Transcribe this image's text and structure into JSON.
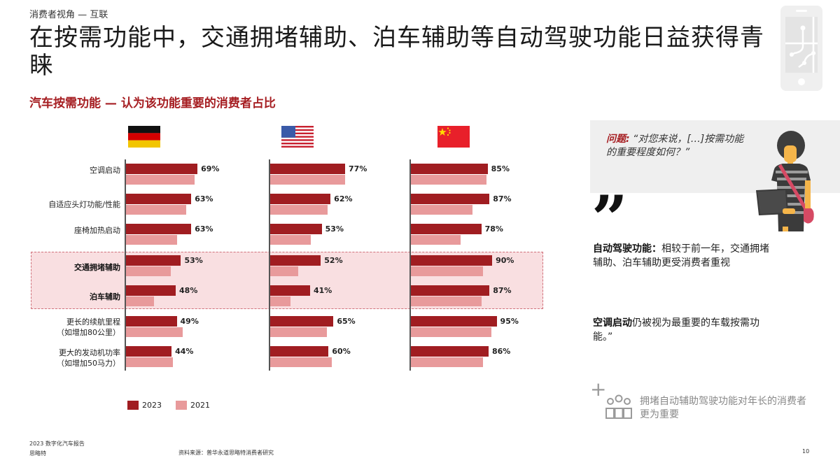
{
  "header": {
    "kicker": "消费者视角 — 互联",
    "title": "在按需功能中，交通拥堵辅助、泊车辅助等自动驾驶功能日益获得青睐",
    "subtitle": "汽车按需功能 — 认为该功能重要的消费者占比",
    "corner_icon": "phone-circuit-icon"
  },
  "colors": {
    "accent": "#a61e22",
    "bar_2023": "#a01d21",
    "bar_2021": "#e89a9b",
    "highlight": "#f9dfe1"
  },
  "chart_data": {
    "type": "bar",
    "orientation": "horizontal",
    "title": "汽车按需功能 — 认为该功能重要的消费者占比",
    "categories": [
      "空调启动",
      "自适应头灯功能/性能",
      "座椅加热启动",
      "交通拥堵辅助",
      "泊车辅助",
      "更长的续航里程（如增加80公里）",
      "更大的发动机功率（如增加50马力）"
    ],
    "highlighted_categories": [
      "交通拥堵辅助",
      "泊车辅助"
    ],
    "legend": [
      "2023",
      "2021"
    ],
    "legend_position": "bottom",
    "grid": false,
    "unit": "%",
    "panels": [
      {
        "country": "德国",
        "flag": "germany-flag",
        "series": [
          {
            "name": "2023",
            "values": [
              69,
              63,
              63,
              53,
              48,
              49,
              44
            ]
          },
          {
            "name": "2021",
            "values": [
              66,
              58,
              49,
              43,
              27,
              55,
              45
            ]
          }
        ]
      },
      {
        "country": "美国",
        "flag": "usa-flag",
        "series": [
          {
            "name": "2023",
            "values": [
              77,
              62,
              53,
              52,
              41,
              65,
              60
            ]
          },
          {
            "name": "2021",
            "values": [
              77,
              59,
              42,
              29,
              21,
              58,
              63
            ]
          }
        ]
      },
      {
        "country": "中国",
        "flag": "china-flag",
        "series": [
          {
            "name": "2023",
            "values": [
              85,
              87,
              78,
              90,
              87,
              95,
              86
            ]
          },
          {
            "name": "2021",
            "values": [
              84,
              68,
              55,
              80,
              78,
              89,
              80
            ]
          }
        ]
      }
    ]
  },
  "rows": [
    {
      "label": "空调启动",
      "bold": false
    },
    {
      "label": "自适应头灯功能/性能",
      "bold": false
    },
    {
      "label": "座椅加热启动",
      "bold": false
    },
    {
      "label": "交通拥堵辅助",
      "bold": true
    },
    {
      "label": "泊车辅助",
      "bold": true
    },
    {
      "label": "更长的续航里程\n（如增加80公里）",
      "bold": false
    },
    {
      "label": "更大的发动机功率\n（如增加50马力）",
      "bold": false
    }
  ],
  "legend": {
    "item_2023": "2023",
    "item_2021": "2021"
  },
  "side_panel": {
    "question_label": "问题:",
    "question_text": "“对您来说，[…]按需功能的重要程度如何？”",
    "quote_mark": "”",
    "insight_1_bold": "自动驾驶功能：",
    "insight_1_text": "相较于前一年，交通拥堵辅助、泊车辅助更受消费者重视",
    "insight_2_bold": "空调启动",
    "insight_2_text": "仍被视为最重要的车载按需功能。”",
    "aside_plus": "+",
    "aside_text": "拥堵自动辅助驾驶功能对年长的消费者更为重要"
  },
  "footer": {
    "report": "2023 数字化汽车报告",
    "brand": "思略特",
    "source": "资料来源：普华永道思略特消费者研究",
    "page": "10"
  }
}
